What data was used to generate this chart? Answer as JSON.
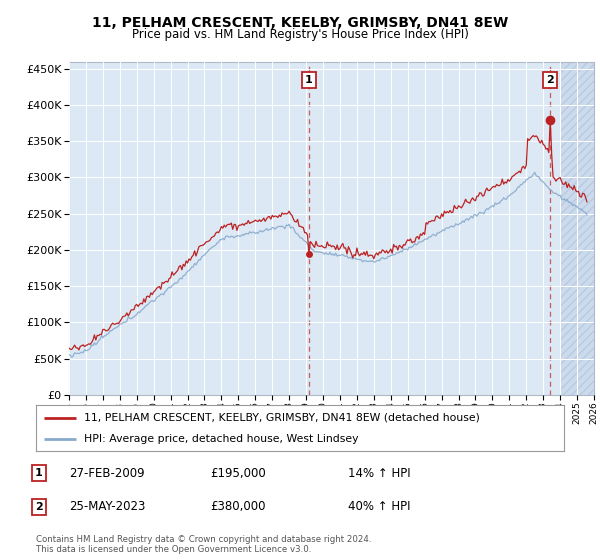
{
  "title": "11, PELHAM CRESCENT, KEELBY, GRIMSBY, DN41 8EW",
  "subtitle": "Price paid vs. HM Land Registry's House Price Index (HPI)",
  "legend_line1": "11, PELHAM CRESCENT, KEELBY, GRIMSBY, DN41 8EW (detached house)",
  "legend_line2": "HPI: Average price, detached house, West Lindsey",
  "footnote": "Contains HM Land Registry data © Crown copyright and database right 2024.\nThis data is licensed under the Open Government Licence v3.0.",
  "sale1_date": "27-FEB-2009",
  "sale1_price": "£195,000",
  "sale1_hpi": "14% ↑ HPI",
  "sale2_date": "25-MAY-2023",
  "sale2_price": "£380,000",
  "sale2_hpi": "40% ↑ HPI",
  "hpi_color": "#88aacc",
  "price_color": "#bb2222",
  "background_color": "#dce8f4",
  "hatch_color": "#ccdaec",
  "ylim": [
    0,
    460000
  ],
  "yticks": [
    0,
    50000,
    100000,
    150000,
    200000,
    250000,
    300000,
    350000,
    400000,
    450000
  ],
  "sale1_x": 2009.15,
  "sale1_y": 195000,
  "sale2_x": 2023.39,
  "sale2_y": 380000,
  "xmin": 1995,
  "xmax": 2026,
  "hatch_start": 2024.0
}
